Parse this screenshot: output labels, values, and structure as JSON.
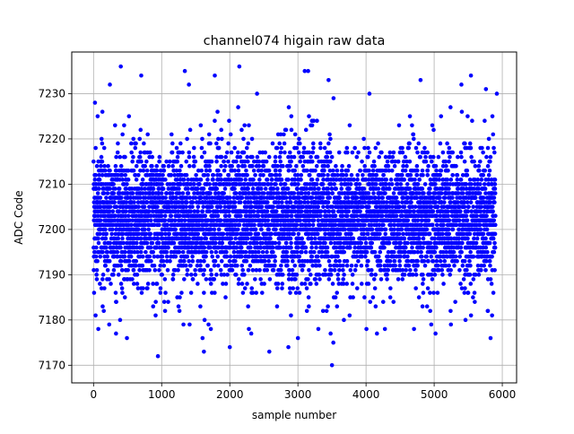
{
  "chart_data": {
    "type": "scatter",
    "title": "channel074 higain raw data",
    "xlabel": "sample number",
    "ylabel": "ADC Code",
    "xlim": [
      -320,
      6210
    ],
    "ylim": [
      7166.1,
      7239.2
    ],
    "xticks": [
      0,
      1000,
      2000,
      3000,
      4000,
      5000,
      6000
    ],
    "yticks": [
      7170,
      7180,
      7190,
      7200,
      7210,
      7220,
      7230
    ],
    "grid": true,
    "series": [
      {
        "color": "#0000ff",
        "marker": "circle",
        "n_samples": 5900,
        "center": 7203,
        "dense_band": [
          7192,
          7214
        ],
        "observed_extremes": [
          {
            "x": 30,
            "y": 7181
          },
          {
            "x": 60,
            "y": 7225
          },
          {
            "x": 70,
            "y": 7178
          },
          {
            "x": 230,
            "y": 7179
          },
          {
            "x": 240,
            "y": 7232
          },
          {
            "x": 330,
            "y": 7177
          },
          {
            "x": 390,
            "y": 7180
          },
          {
            "x": 400,
            "y": 7236
          },
          {
            "x": 490,
            "y": 7176
          },
          {
            "x": 700,
            "y": 7234
          },
          {
            "x": 1050,
            "y": 7182
          },
          {
            "x": 1320,
            "y": 7179
          },
          {
            "x": 1340,
            "y": 7235
          },
          {
            "x": 1400,
            "y": 7232
          },
          {
            "x": 1410,
            "y": 7179
          },
          {
            "x": 1600,
            "y": 7176
          },
          {
            "x": 1620,
            "y": 7173
          },
          {
            "x": 1780,
            "y": 7234
          },
          {
            "x": 2000,
            "y": 7174
          },
          {
            "x": 2140,
            "y": 7236
          },
          {
            "x": 2280,
            "y": 7178
          },
          {
            "x": 2400,
            "y": 7230
          },
          {
            "x": 2580,
            "y": 7173
          },
          {
            "x": 2860,
            "y": 7174
          },
          {
            "x": 3000,
            "y": 7176
          },
          {
            "x": 3100,
            "y": 7235
          },
          {
            "x": 3150,
            "y": 7235
          },
          {
            "x": 3300,
            "y": 7178
          },
          {
            "x": 3450,
            "y": 7233
          },
          {
            "x": 3480,
            "y": 7177
          },
          {
            "x": 3500,
            "y": 7170
          },
          {
            "x": 3520,
            "y": 7175
          },
          {
            "x": 4050,
            "y": 7230
          },
          {
            "x": 4160,
            "y": 7177
          },
          {
            "x": 4800,
            "y": 7233
          },
          {
            "x": 5020,
            "y": 7177
          },
          {
            "x": 5400,
            "y": 7232
          },
          {
            "x": 5460,
            "y": 7180
          },
          {
            "x": 5540,
            "y": 7234
          },
          {
            "x": 5760,
            "y": 7231
          },
          {
            "x": 5850,
            "y": 7181
          },
          {
            "x": 5920,
            "y": 7230
          }
        ]
      }
    ]
  }
}
